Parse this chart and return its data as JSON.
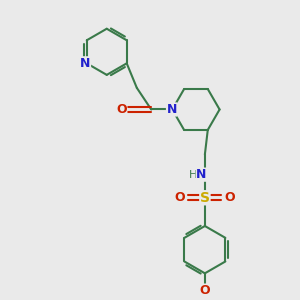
{
  "background_color": "#eaeaea",
  "bond_color": "#3a7a4a",
  "nitrogen_color": "#2222cc",
  "oxygen_color": "#cc2200",
  "sulfur_color": "#ccaa00",
  "line_width": 1.5,
  "figsize": [
    3.0,
    3.0
  ],
  "dpi": 100,
  "xlim": [
    0,
    10
  ],
  "ylim": [
    0,
    10
  ]
}
